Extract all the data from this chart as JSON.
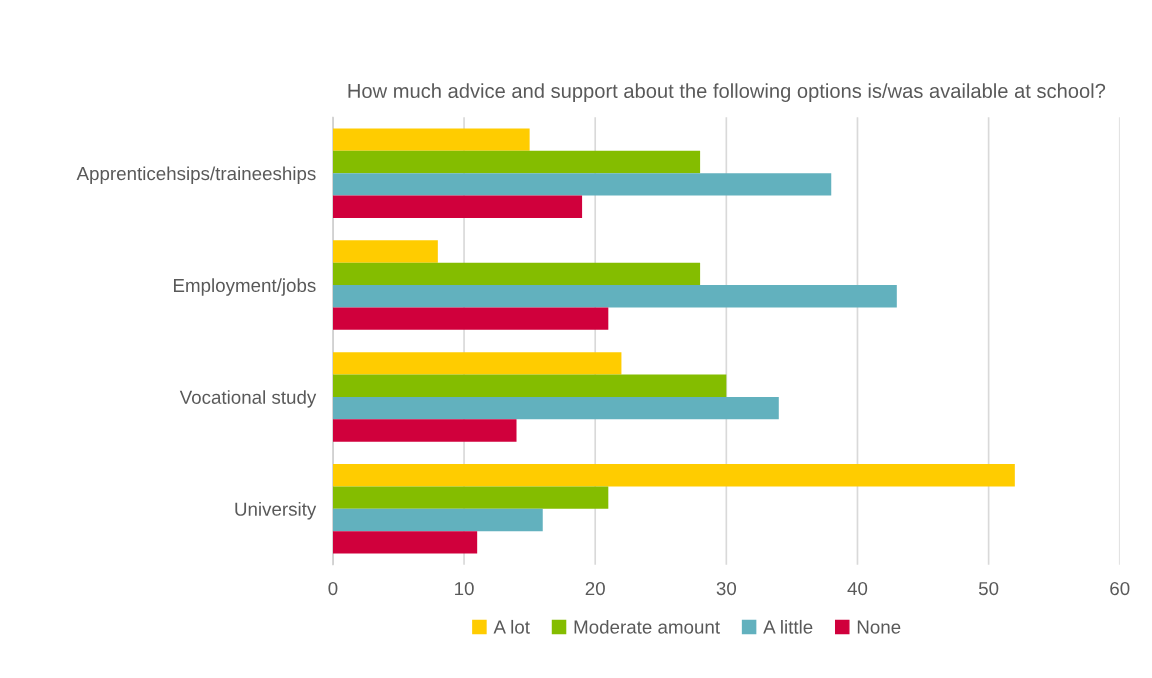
{
  "chart_data": {
    "type": "bar",
    "orientation": "horizontal",
    "title": "How much advice and support about the following options is/was available at school?",
    "categories": [
      "Apprenticehsips/traineeships",
      "Employment/jobs",
      "Vocational study",
      "University"
    ],
    "series": [
      {
        "name": "A lot",
        "color": "#ffcc00",
        "values": [
          15,
          8,
          22,
          52
        ]
      },
      {
        "name": "Moderate amount",
        "color": "#84bd00",
        "values": [
          28,
          28,
          30,
          21
        ]
      },
      {
        "name": "A little",
        "color": "#62b1be",
        "values": [
          38,
          43,
          34,
          16
        ]
      },
      {
        "name": "None",
        "color": "#d0003c",
        "values": [
          19,
          21,
          14,
          11
        ]
      }
    ],
    "xlim": [
      0,
      60
    ],
    "xticks": [
      0,
      10,
      20,
      30,
      40,
      50,
      60
    ],
    "grid": "x",
    "legend": "bottom"
  }
}
